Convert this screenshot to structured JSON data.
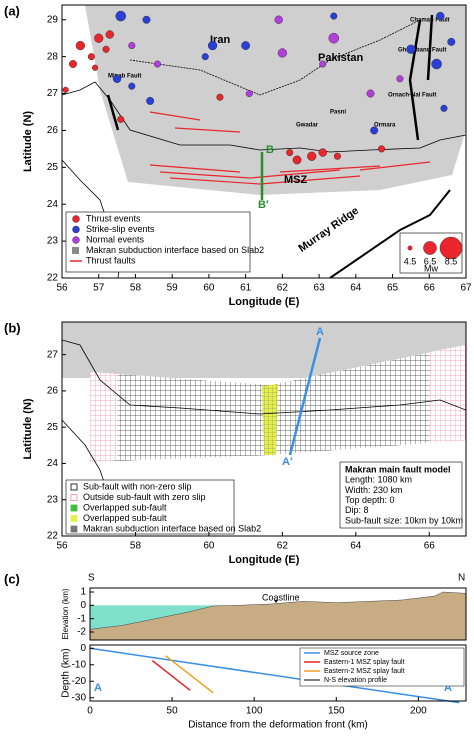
{
  "chart_data": [
    {
      "type": "scatter",
      "panel_label": "(a)",
      "xlabel": "Longitude (E)",
      "ylabel": "Latitude (N)",
      "xlim": [
        56,
        67
      ],
      "ylim": [
        22,
        29.4
      ],
      "xticks": [
        56,
        57,
        58,
        59,
        60,
        61,
        62,
        63,
        64,
        65,
        66,
        67
      ],
      "yticks": [
        22,
        23,
        24,
        25,
        26,
        27,
        28,
        29
      ],
      "series": [
        {
          "name": "Thrust events",
          "color": "#e8262b",
          "x": [
            56.5,
            56.8,
            57.0,
            56.3,
            57.2,
            56.9,
            57.3,
            57.6,
            60.3,
            62.2,
            62.8,
            63.1,
            63.5,
            62.4,
            64.7,
            56.1
          ],
          "y": [
            28.3,
            28.0,
            28.5,
            27.8,
            28.2,
            27.7,
            28.6,
            26.3,
            26.9,
            25.4,
            25.3,
            25.4,
            25.3,
            25.2,
            25.5,
            27.1
          ],
          "sizes": [
            5.5,
            5.0,
            5.5,
            5.2,
            5.0,
            4.8,
            5.3,
            5.0,
            5.0,
            5.0,
            5.5,
            5.3,
            5.0,
            5.4,
            5.0,
            4.8
          ]
        },
        {
          "name": "Strike-slip events",
          "color": "#2a3fd6",
          "x": [
            57.6,
            58.3,
            57.5,
            57.9,
            58.4,
            59.9,
            60.1,
            61.0,
            63.4,
            65.5,
            66.2,
            66.6,
            66.3,
            64.5,
            66.4
          ],
          "y": [
            29.1,
            29.0,
            27.4,
            27.2,
            26.8,
            28.0,
            28.3,
            28.3,
            29.1,
            28.2,
            27.8,
            28.4,
            29.1,
            26.0,
            26.6
          ],
          "sizes": [
            5.8,
            5.2,
            5.3,
            5.0,
            5.2,
            5.0,
            5.5,
            5.4,
            5.0,
            5.5,
            5.8,
            5.2,
            5.3,
            5.2,
            5.0
          ]
        },
        {
          "name": "Normal events",
          "color": "#b23fd9",
          "x": [
            57.9,
            58.6,
            62.0,
            63.4,
            63.1,
            64.4,
            65.2,
            61.9,
            61.1
          ],
          "y": [
            28.3,
            27.8,
            28.1,
            28.5,
            27.8,
            27.0,
            27.4,
            29.0,
            27.0
          ],
          "sizes": [
            5.0,
            5.0,
            5.5,
            5.8,
            5.0,
            5.2,
            5.0,
            5.3,
            5.0
          ]
        }
      ],
      "legend_items": [
        "Makran subduction interface based on Slab2",
        "Thrust faults"
      ],
      "size_legend": {
        "values": [
          4.5,
          6.5,
          8.5
        ],
        "title": "Mw"
      },
      "annotations": [
        "Iran",
        "Pakistan",
        "Chaman Fault",
        "Ghazaband Fault",
        "Minab Fault",
        "Ornach-Nal Fault",
        "Gwadar",
        "Pasni",
        "Ormara",
        "MSZ",
        "Murray Ridge",
        "B",
        "B′"
      ]
    },
    {
      "type": "map",
      "panel_label": "(b)",
      "xlabel": "Longitude (E)",
      "ylabel": "Latitude (N)",
      "xlim": [
        56,
        67
      ],
      "ylim": [
        22,
        27.9
      ],
      "xticks": [
        56,
        58,
        60,
        62,
        64,
        66
      ],
      "yticks": [
        22,
        23,
        24,
        25,
        26,
        27
      ],
      "legend_items": [
        "Sub-fault with non-zero slip",
        "Outside sub-fault with zero slip",
        "Overlapped sub-fault",
        "Overlapped sub-fault",
        "Makran subduction interface based on Slab2"
      ],
      "model_box": [
        "Makran main fault model",
        "Length: 1080 km",
        "Width: 230 km",
        "Top depth: 0",
        "Dip: 8",
        "Sub-fault size: 10km by 10km"
      ],
      "annotations": [
        "A",
        "A′"
      ]
    },
    {
      "type": "area",
      "panel_label": "(c)",
      "ylabel": "Elevation (km)",
      "xlim": [
        0,
        229
      ],
      "ylim": [
        -2.6,
        1.3
      ],
      "yticks": [
        -2,
        -1,
        0,
        1
      ],
      "series": [
        {
          "name": "N-S elevation profile",
          "color": "#c8ad84",
          "x": [
            0,
            20,
            40,
            60,
            75,
            90,
            110,
            130,
            150,
            170,
            190,
            210,
            215,
            229
          ],
          "y": [
            -1.8,
            -1.5,
            -1.0,
            -0.5,
            -0.05,
            0,
            0.1,
            0.3,
            0.2,
            0.3,
            0.4,
            0.7,
            1.0,
            0.9
          ]
        }
      ],
      "annotations": [
        "S",
        "N",
        "Coastline"
      ]
    },
    {
      "type": "line",
      "ylabel": "Depth (km)",
      "xlabel": "Distance from the deformation front (km)",
      "xlim": [
        0,
        229
      ],
      "ylim": [
        -32,
        2
      ],
      "xticks": [
        0,
        50,
        100,
        150,
        200
      ],
      "yticks": [
        -30,
        -20,
        -10,
        0
      ],
      "series": [
        {
          "name": "MSZ source zone",
          "color": "#3a8ee6",
          "x": [
            0,
            225
          ],
          "y": [
            0,
            -33
          ]
        },
        {
          "name": "Eastern-1 MSZ splay fault",
          "color": "#e8262b",
          "x": [
            38,
            61
          ],
          "y": [
            -7.5,
            -25.5
          ]
        },
        {
          "name": "Eastern-2 MSZ splay fault",
          "color": "#f0a020",
          "x": [
            46,
            75
          ],
          "y": [
            -4.5,
            -27
          ]
        }
      ],
      "annotations": [
        "A",
        "A′"
      ]
    }
  ]
}
